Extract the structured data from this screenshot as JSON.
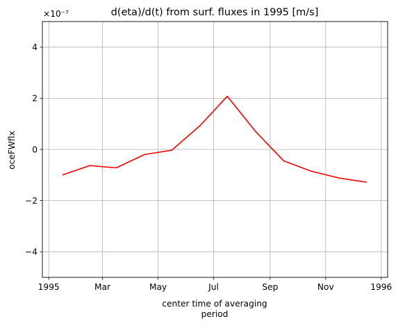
{
  "chart_data": {
    "type": "line",
    "title": "d(eta)/d(t) from surf. fluxes in 1995 [m/s]",
    "xlabel_lines": [
      "center time of averaging",
      "period"
    ],
    "ylabel": "oceFWflx",
    "y_offset_label": "×10⁻⁷",
    "x_ticks": [
      {
        "date": "1995-01-01",
        "label": "1995"
      },
      {
        "date": "1995-03-01",
        "label": "Mar"
      },
      {
        "date": "1995-05-01",
        "label": "May"
      },
      {
        "date": "1995-07-01",
        "label": "Jul"
      },
      {
        "date": "1995-09-01",
        "label": "Sep"
      },
      {
        "date": "1995-11-01",
        "label": "Nov"
      },
      {
        "date": "1996-01-01",
        "label": "1996"
      }
    ],
    "y_ticks": [
      {
        "value": -4,
        "label": "−4"
      },
      {
        "value": -2,
        "label": "−2"
      },
      {
        "value": 0,
        "label": "0"
      },
      {
        "value": 2,
        "label": "2"
      },
      {
        "value": 4,
        "label": "4"
      }
    ],
    "ylim": [
      -5,
      5
    ],
    "xlim": [
      "1994-12-25",
      "1996-01-08"
    ],
    "grid": true,
    "series": [
      {
        "color": "#ff0000",
        "points": [
          {
            "x": "1995-01-16",
            "y": -1.0
          },
          {
            "x": "1995-02-15",
            "y": -0.63
          },
          {
            "x": "1995-03-16",
            "y": -0.72
          },
          {
            "x": "1995-04-16",
            "y": -0.2
          },
          {
            "x": "1995-05-16",
            "y": -0.03
          },
          {
            "x": "1995-06-16",
            "y": 0.93
          },
          {
            "x": "1995-07-16",
            "y": 2.08
          },
          {
            "x": "1995-08-16",
            "y": 0.7
          },
          {
            "x": "1995-09-16",
            "y": -0.45
          },
          {
            "x": "1995-10-16",
            "y": -0.85
          },
          {
            "x": "1995-11-16",
            "y": -1.12
          },
          {
            "x": "1995-12-16",
            "y": -1.28
          }
        ]
      }
    ]
  }
}
